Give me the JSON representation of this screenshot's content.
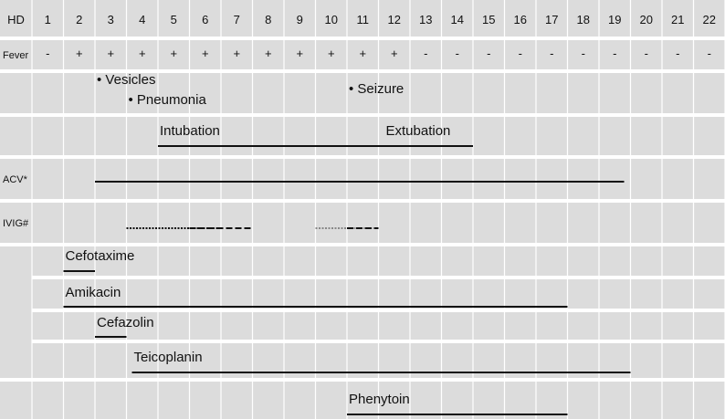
{
  "header": {
    "label": "HD",
    "days": [
      "1",
      "2",
      "3",
      "4",
      "5",
      "6",
      "7",
      "8",
      "9",
      "10",
      "11",
      "12",
      "13",
      "14",
      "15",
      "16",
      "17",
      "18",
      "19",
      "20",
      "21",
      "22"
    ]
  },
  "rows": [
    {
      "id": "fever",
      "label": "Fever"
    },
    {
      "id": "events",
      "label": ""
    },
    {
      "id": "ventilation",
      "label": ""
    },
    {
      "id": "acv",
      "label": "ACV*"
    },
    {
      "id": "ivig",
      "label": "IVIG#"
    },
    {
      "id": "antibiotics",
      "label": ""
    },
    {
      "id": "phenytoin",
      "label": ""
    }
  ],
  "fever": [
    "-",
    "+",
    "+",
    "+",
    "+",
    "+",
    "+",
    "+",
    "+",
    "+",
    "+",
    "+",
    "-",
    "-",
    "-",
    "-",
    "-",
    "-",
    "-",
    "-",
    "-",
    "-"
  ],
  "events": [
    {
      "text": "• Vesicles",
      "day": 3
    },
    {
      "text": "• Pneumonia",
      "day": 4
    },
    {
      "text": "• Seizure",
      "day": 11
    }
  ],
  "ventilation": {
    "intubation": "Intubation",
    "extubation": "Extubation",
    "start_day": 5,
    "end_day": 14
  },
  "acv": {
    "start_day": 3,
    "end_day": 19
  },
  "ivig": [
    {
      "start_day": 4,
      "end_day": 5.9,
      "style": "dotted"
    },
    {
      "start_day": 6,
      "end_day": 7,
      "style": "dashed"
    },
    {
      "start_day": 10,
      "end_day": 10.9,
      "style": "dotted-light"
    },
    {
      "start_day": 11,
      "end_day": 11,
      "style": "dashed"
    }
  ],
  "drugs": [
    {
      "name": "Cefotaxime",
      "start_day": 2,
      "end_day": 2
    },
    {
      "name": "Amikacin",
      "start_day": 2,
      "end_day": 17
    },
    {
      "name": "Cefazolin",
      "start_day": 3,
      "end_day": 3
    },
    {
      "name": "Teicoplanin",
      "start_day": 4,
      "end_day": 19
    },
    {
      "name": "Phenytoin",
      "start_day": 11,
      "end_day": 17
    }
  ],
  "colors": {
    "background": "#dcdcdc",
    "grid": "#ffffff",
    "line": "#111111",
    "light_line": "#888888"
  }
}
